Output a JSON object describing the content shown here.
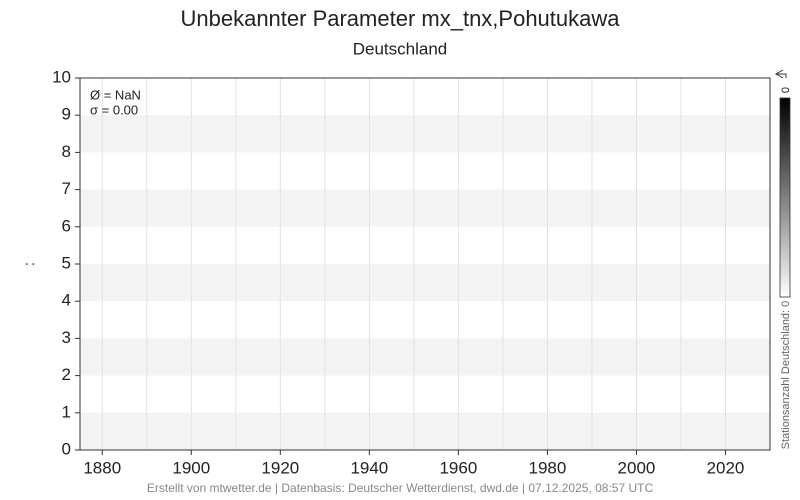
{
  "chart_data": {
    "type": "line",
    "title": "Unbekannter Parameter mx_tnx,Pohutukawa",
    "subtitle": "Deutschland",
    "y_label": ":",
    "series": [],
    "xlim": [
      1875,
      2030
    ],
    "xticks": [
      1880,
      1900,
      1920,
      1940,
      1960,
      1980,
      2000,
      2020
    ],
    "xgrid": [
      1880,
      1890,
      1900,
      1910,
      1920,
      1930,
      1940,
      1950,
      1960,
      1970,
      1980,
      1990,
      2000,
      2010,
      2020
    ],
    "ylim": [
      0,
      10
    ],
    "yticks": [
      0,
      1,
      2,
      3,
      4,
      5,
      6,
      7,
      8,
      9,
      10
    ],
    "annotations": [
      "Ø = NaN",
      "σ = 0.00"
    ],
    "colorbar": {
      "label": "Stationsanzahl Deutschland: 0",
      "ticks": [
        0
      ],
      "colors": [
        "#000000",
        "#ffffff"
      ]
    },
    "footer": "Erstellt von mtwetter.de | Datenbasis: Deutscher Wetterdienst, dwd.de | 07.12.2025, 08:57 UTC"
  }
}
